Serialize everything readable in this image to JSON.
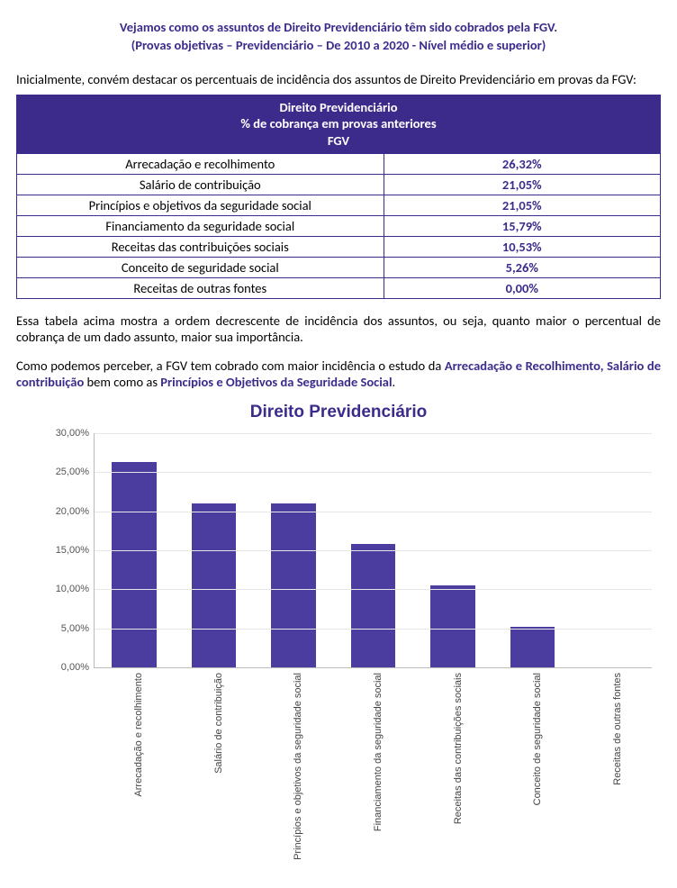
{
  "title_line1": "Vejamos como os assuntos de Direito Previdenciário têm sido cobrados pela FGV.",
  "title_line2": "(Provas objetivas – Previdenciário – De 2010 a 2020 - Nível médio e superior)",
  "intro": "Inicialmente, convém destacar os percentuais de incidência dos assuntos de Direito Previdenciário em provas da FGV:",
  "table": {
    "header_line1": "Direito Previdenciário",
    "header_line2": "% de cobrança em provas anteriores",
    "header_line3": "FGV",
    "rows": [
      {
        "topic": "Arrecadação e recolhimento",
        "pct": "26,32%",
        "value": 26.32
      },
      {
        "topic": "Salário de contribuição",
        "pct": "21,05%",
        "value": 21.05
      },
      {
        "topic": "Princípios e objetivos da seguridade social",
        "pct": "21,05%",
        "value": 21.05
      },
      {
        "topic": "Financiamento da seguridade social",
        "pct": "15,79%",
        "value": 15.79
      },
      {
        "topic": "Receitas das contribuições sociais",
        "pct": "10,53%",
        "value": 10.53
      },
      {
        "topic": "Conceito de seguridade social",
        "pct": "5,26%",
        "value": 5.26
      },
      {
        "topic": "Receitas de outras fontes",
        "pct": "0,00%",
        "value": 0.0
      }
    ]
  },
  "para1": "Essa tabela acima mostra a ordem decrescente de incidência dos assuntos, ou seja, quanto maior o percentual de cobrança de um dado assunto, maior sua importância.",
  "para2_pre": "Como podemos perceber, a FGV tem cobrado com maior incidência o estudo da ",
  "para2_hl1": "Arrecadação e Recolhimento, Salário de contribuição",
  "para2_mid": " bem como as ",
  "para2_hl2": "Princípios e Objetivos da Seguridade Social",
  "para2_end": ".",
  "chart": {
    "title": "Direito Previdenciário",
    "ymax": 30,
    "ytick_step": 5,
    "yticks": [
      {
        "v": 0,
        "label": "0,00%"
      },
      {
        "v": 5,
        "label": "5,00%"
      },
      {
        "v": 10,
        "label": "10,00%"
      },
      {
        "v": 15,
        "label": "15,00%"
      },
      {
        "v": 20,
        "label": "20,00%"
      },
      {
        "v": 25,
        "label": "25,00%"
      },
      {
        "v": 30,
        "label": "30,00%"
      }
    ],
    "bar_color": "#4b3da0",
    "grid_color": "#e6e6e6",
    "axis_color": "#bbbbbb",
    "background_color": "#ffffff",
    "label_fontsize": 11
  }
}
